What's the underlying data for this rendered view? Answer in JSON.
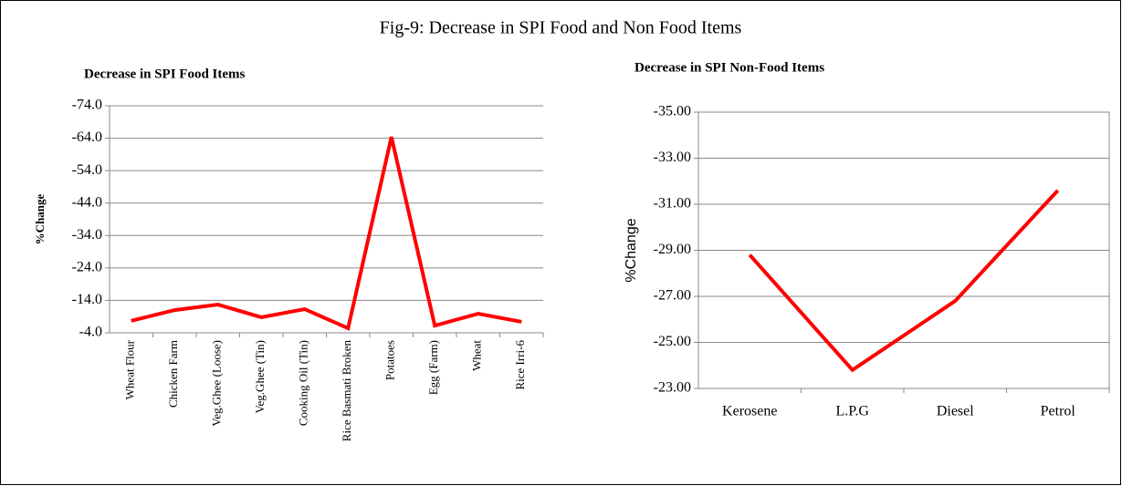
{
  "title": "Fig-9: Decrease in SPI Food and Non Food Items",
  "chart_data": [
    {
      "type": "line",
      "title": "Decrease in SPI Food Items",
      "y_label": "%Change",
      "categories": [
        "Wheat Flour",
        "Chicken Farm",
        "Veg.Ghee (Loose)",
        "Veg.Ghee (Tin)",
        "Cooking Oil (Tin)",
        "Rice Basmati Broken",
        "Potatoes",
        "Egg (Farm)",
        "Wheat",
        "Rice Irri-6"
      ],
      "series": [
        {
          "name": "%Change",
          "color": "#ff0000",
          "values": [
            -7.7,
            -11.0,
            -12.7,
            -8.8,
            -11.3,
            -5.4,
            -64.4,
            -6.2,
            -9.9,
            -7.4
          ]
        }
      ],
      "ylim": [
        -4,
        -74
      ],
      "yticks": [
        {
          "value": -4,
          "label": "-4.0"
        },
        {
          "value": -14,
          "label": "-14.0"
        },
        {
          "value": -24,
          "label": "-24.0"
        },
        {
          "value": -34,
          "label": "-34.0"
        },
        {
          "value": -44,
          "label": "-44.0"
        },
        {
          "value": -54,
          "label": "-54.0"
        },
        {
          "value": -64,
          "label": "-64.0"
        },
        {
          "value": -74,
          "label": "-74.0"
        }
      ],
      "grid": true
    },
    {
      "type": "line",
      "title": "Decrease in SPI Non-Food Items",
      "y_label": "%Change",
      "categories": [
        "Kerosene",
        "L.P.G",
        "Diesel",
        "Petrol"
      ],
      "series": [
        {
          "name": "%Change",
          "color": "#ff0000",
          "values": [
            -28.8,
            -23.8,
            -26.8,
            -31.6
          ]
        }
      ],
      "ylim": [
        -23,
        -35
      ],
      "yticks": [
        {
          "value": -23,
          "label": "-23.00"
        },
        {
          "value": -25,
          "label": "-25.00"
        },
        {
          "value": -27,
          "label": "-27.00"
        },
        {
          "value": -29,
          "label": "-29.00"
        },
        {
          "value": -31,
          "label": "-31.00"
        },
        {
          "value": -33,
          "label": "-33.00"
        },
        {
          "value": -35,
          "label": "-35.00"
        }
      ],
      "grid": true
    }
  ]
}
